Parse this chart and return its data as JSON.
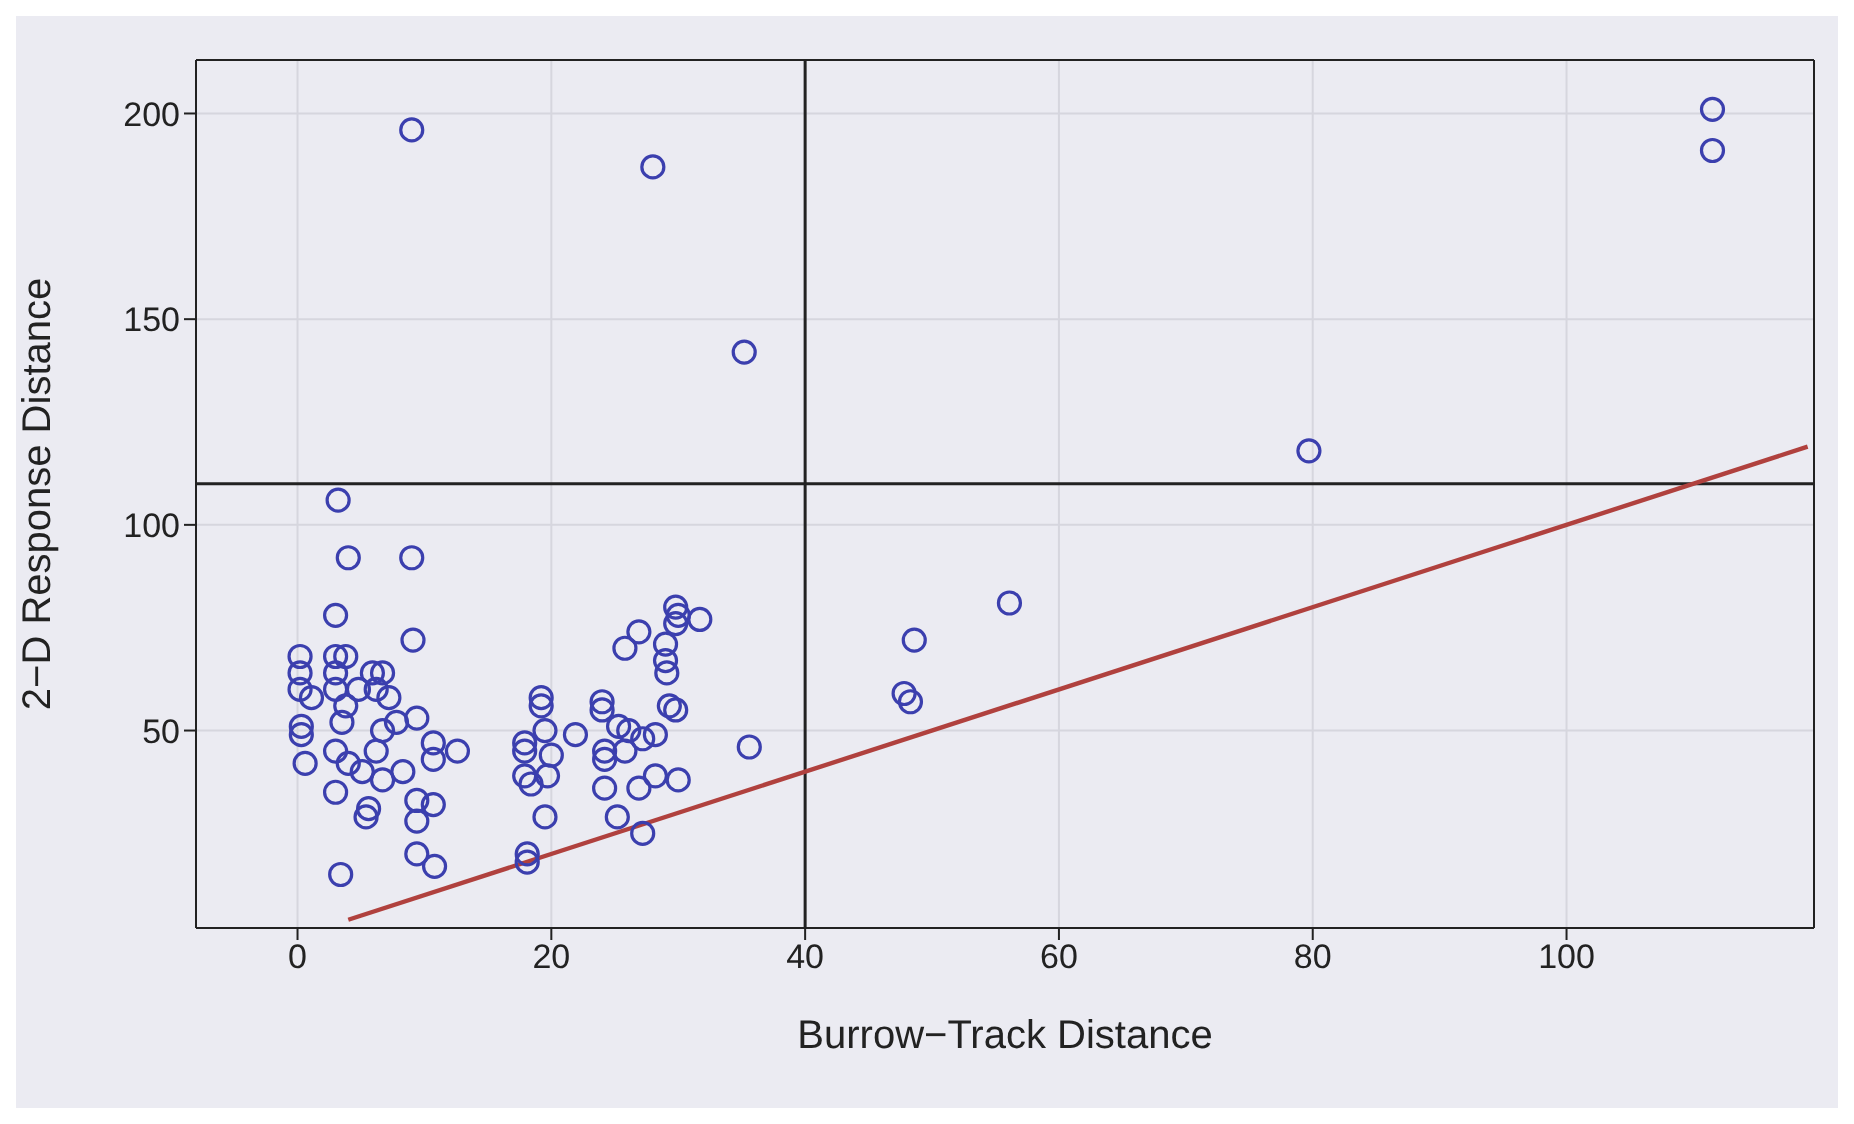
{
  "chart_data": {
    "type": "scatter",
    "xlabel": "Burrow−Track Distance",
    "ylabel": "2−D Response Distance",
    "xlim": [
      -8,
      119.5
    ],
    "ylim": [
      2,
      213
    ],
    "xticks": [
      0,
      20,
      40,
      60,
      80,
      100
    ],
    "yticks": [
      50,
      100,
      150,
      200
    ],
    "grid": true,
    "ref_lines": [
      {
        "axis": "x",
        "value": 40,
        "color": "#222222"
      },
      {
        "axis": "y",
        "value": 110,
        "color": "#222222"
      }
    ],
    "series": [
      {
        "color": "#3b3fae",
        "marker": "circle",
        "x": [
          9,
          28,
          35.2,
          111.5,
          111.5,
          79.7,
          56.1,
          48.6,
          47.8,
          48.3,
          3.2,
          4,
          9,
          3,
          9.1,
          0.2,
          3,
          3.8,
          0.2,
          0.2,
          1.1,
          3,
          3,
          4.8,
          5.9,
          6.7,
          6.2,
          7.2,
          3.8,
          3.5,
          9.4,
          0.3,
          0.3,
          6.7,
          7.8,
          10.7,
          12.6,
          0.6,
          3,
          4,
          6.2,
          5.1,
          8.3,
          6.7,
          10.7,
          3,
          5.6,
          5.4,
          9.4,
          10.7,
          9.4,
          9.4,
          10.8,
          3.4,
          19.2,
          19.2,
          19.5,
          17.9,
          17.9,
          17.9,
          18.4,
          19.7,
          20,
          21.9,
          19.5,
          18.1,
          18.1,
          24,
          24,
          25.3,
          26.1,
          27.2,
          28.2,
          24.2,
          24.2,
          25.8,
          24.2,
          26.9,
          28.2,
          30,
          25.2,
          27.2,
          25.8,
          26.9,
          29,
          29,
          29.1,
          29.8,
          30,
          29.8,
          31.7,
          29.3,
          29.8,
          35.6
        ],
        "values": [
          196,
          187,
          142,
          201,
          191,
          118,
          81,
          72,
          59,
          57,
          106,
          92,
          92,
          78,
          72,
          68,
          68,
          68,
          64,
          60,
          58,
          64,
          60,
          60,
          64,
          64,
          60,
          58,
          56,
          52,
          53,
          51,
          49,
          50,
          52,
          47,
          45,
          42,
          45,
          42,
          45,
          40,
          40,
          38,
          43,
          35,
          31,
          29,
          33,
          32,
          28,
          20,
          17,
          15,
          58,
          56,
          50,
          47,
          45,
          39,
          37,
          39,
          44,
          49,
          29,
          20,
          18,
          57,
          55,
          51,
          50,
          48,
          49,
          45,
          43,
          45,
          36,
          36,
          39,
          38,
          29,
          25,
          70,
          74,
          71,
          67,
          64,
          80,
          78,
          76,
          77,
          56,
          55,
          46
        ]
      },
      {
        "type": "line",
        "color": "#b0413e",
        "marker": "none",
        "x": [
          4,
          119
        ],
        "values": [
          4,
          119
        ]
      }
    ]
  }
}
